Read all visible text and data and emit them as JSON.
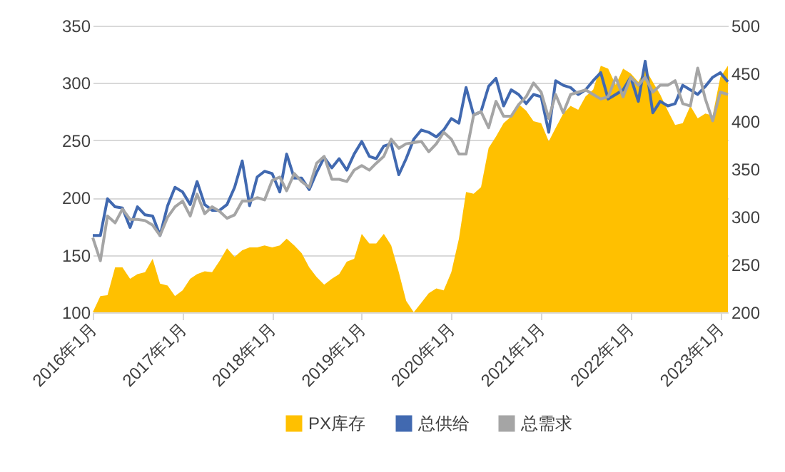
{
  "chart_data": {
    "type": "line",
    "x": [
      "2016-01",
      "2016-02",
      "2016-03",
      "2016-04",
      "2016-05",
      "2016-06",
      "2016-07",
      "2016-08",
      "2016-09",
      "2016-10",
      "2016-11",
      "2016-12",
      "2017-01",
      "2017-02",
      "2017-03",
      "2017-04",
      "2017-05",
      "2017-06",
      "2017-07",
      "2017-08",
      "2017-09",
      "2017-10",
      "2017-11",
      "2017-12",
      "2018-01",
      "2018-02",
      "2018-03",
      "2018-04",
      "2018-05",
      "2018-06",
      "2018-07",
      "2018-08",
      "2018-09",
      "2018-10",
      "2018-11",
      "2018-12",
      "2019-01",
      "2019-02",
      "2019-03",
      "2019-04",
      "2019-05",
      "2019-06",
      "2019-07",
      "2019-08",
      "2019-09",
      "2019-10",
      "2019-11",
      "2019-12",
      "2020-01",
      "2020-02",
      "2020-03",
      "2020-04",
      "2020-05",
      "2020-06",
      "2020-07",
      "2020-08",
      "2020-09",
      "2020-10",
      "2020-11",
      "2020-12",
      "2021-01",
      "2021-02",
      "2021-03",
      "2021-04",
      "2021-05",
      "2021-06",
      "2021-07",
      "2021-08",
      "2021-09",
      "2021-10",
      "2021-11",
      "2021-12",
      "2022-01",
      "2022-02",
      "2022-03",
      "2022-04",
      "2022-05",
      "2022-06",
      "2022-07",
      "2022-08",
      "2022-09",
      "2022-10",
      "2022-11",
      "2022-12",
      "2023-01",
      "2023-02"
    ],
    "series": [
      {
        "name": "PX库存",
        "type": "area",
        "axis": "y2",
        "color": "#ffc000",
        "values": [
          200,
          217,
          218,
          247,
          247,
          235,
          240,
          242,
          256,
          230,
          228,
          217,
          223,
          235,
          240,
          243,
          242,
          254,
          267,
          258,
          265,
          268,
          268,
          270,
          268,
          270,
          277,
          270,
          262,
          247,
          237,
          229,
          235,
          240,
          253,
          256,
          282,
          272,
          272,
          282,
          270,
          242,
          212,
          200,
          210,
          220,
          225,
          223,
          242,
          277,
          326,
          324,
          331,
          372,
          384,
          398,
          405,
          418,
          411,
          400,
          398,
          379,
          393,
          408,
          416,
          412,
          426,
          433,
          458,
          455,
          438,
          455,
          450,
          441,
          455,
          441,
          428,
          411,
          396,
          398,
          416,
          403,
          408,
          406,
          446,
          458
        ]
      },
      {
        "name": "总供给",
        "color": "#4169b0",
        "values": [
          167,
          167,
          199,
          192,
          191,
          174,
          192,
          185,
          184,
          167,
          193,
          209,
          205,
          194,
          214,
          194,
          189,
          189,
          194,
          209,
          232,
          193,
          218,
          223,
          221,
          205,
          238,
          217,
          217,
          207,
          222,
          235,
          226,
          234,
          224,
          238,
          249,
          236,
          234,
          245,
          247,
          220,
          234,
          251,
          259,
          257,
          253,
          259,
          269,
          265,
          296,
          272,
          275,
          297,
          304,
          280,
          294,
          290,
          282,
          290,
          288,
          257,
          302,
          298,
          296,
          290,
          294,
          302,
          309,
          286,
          290,
          294,
          305,
          284,
          319,
          274,
          284,
          280,
          282,
          298,
          294,
          290,
          297,
          305,
          309,
          301
        ]
      },
      {
        "name": "总需求",
        "color": "#a5a5a5",
        "values": [
          165,
          145,
          184,
          178,
          190,
          181,
          181,
          180,
          176,
          167,
          183,
          192,
          197,
          184,
          203,
          186,
          192,
          188,
          182,
          185,
          197,
          197,
          200,
          198,
          215,
          218,
          206,
          221,
          214,
          209,
          230,
          236,
          216,
          216,
          214,
          224,
          228,
          224,
          230,
          236,
          251,
          243,
          247,
          248,
          249,
          240,
          247,
          257,
          251,
          238,
          238,
          272,
          275,
          261,
          284,
          271,
          271,
          281,
          288,
          300,
          292,
          269,
          290,
          274,
          290,
          292,
          294,
          290,
          286,
          288,
          305,
          288,
          305,
          298,
          305,
          292,
          298,
          298,
          302,
          282,
          280,
          313,
          286,
          267,
          292,
          290
        ]
      }
    ],
    "xlim": [
      "2016-01",
      "2023-02"
    ],
    "xticks": [
      {
        "value": "2016-01",
        "label": "2016年1月"
      },
      {
        "value": "2017-01",
        "label": "2017年1月"
      },
      {
        "value": "2018-01",
        "label": "2018年1月"
      },
      {
        "value": "2019-01",
        "label": "2019年1月"
      },
      {
        "value": "2020-01",
        "label": "2020年1月"
      },
      {
        "value": "2021-01",
        "label": "2021年1月"
      },
      {
        "value": "2022-01",
        "label": "2022年1月"
      },
      {
        "value": "2023-01",
        "label": "2023年1月"
      }
    ],
    "ylim": [
      100,
      350
    ],
    "yticks": [
      100,
      150,
      200,
      250,
      300,
      350
    ],
    "y2lim": [
      200,
      500
    ],
    "y2ticks": [
      200,
      250,
      300,
      350,
      400,
      450,
      500
    ],
    "grid": "y",
    "legend": "bottom",
    "marker": "none",
    "line_style": "solid"
  }
}
